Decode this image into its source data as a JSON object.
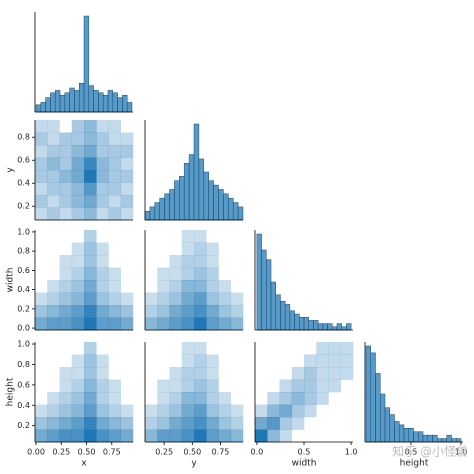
{
  "chart_data": {
    "type": "pairplot",
    "color": "#1f77b4",
    "variables": [
      {
        "label": "x",
        "lim": [
          -0.01,
          0.96
        ],
        "xticks": [
          {
            "value": 0,
            "label": "0.00"
          },
          0.25,
          {
            "value": 0.5,
            "label": "0.50"
          },
          0.75
        ]
      },
      {
        "label": "y",
        "lim": [
          0.08,
          0.95
        ],
        "xticks": [
          0.25,
          {
            "value": 0.5,
            "label": "0.50"
          },
          0.75
        ],
        "yticks": [
          0.2,
          0.4,
          0.6,
          0.8
        ]
      },
      {
        "label": "width",
        "lim": [
          -0.02,
          1.02
        ],
        "xticks": [
          {
            "value": 0,
            "label": "0.0"
          },
          0.5,
          {
            "value": 1,
            "label": "1.0"
          }
        ],
        "yticks": [
          {
            "value": 0,
            "label": "0.0"
          },
          0.2,
          0.4,
          0.6,
          0.8,
          {
            "value": 1,
            "label": "1.0"
          }
        ]
      },
      {
        "label": "height",
        "lim": [
          0.04,
          1.02
        ],
        "xticks": [
          0.5,
          {
            "value": 1,
            "label": "1.0"
          }
        ],
        "yticks": [
          0.2,
          0.4,
          0.6,
          0.8,
          {
            "value": 1,
            "label": "1.0"
          }
        ]
      }
    ],
    "diagonal": [
      {
        "bins": [
          0,
          0.0475,
          0.095,
          0.1425,
          0.19,
          0.2375,
          0.285,
          0.3325,
          0.38,
          0.4275,
          0.475,
          0.5225,
          0.57,
          0.6175,
          0.665,
          0.7125,
          0.76,
          0.8075,
          0.855,
          0.9025,
          0.95
        ],
        "counts": [
          3,
          4,
          6,
          8,
          9,
          7,
          8,
          10,
          9,
          12,
          40,
          11,
          9,
          8,
          7,
          9,
          8,
          6,
          7,
          4
        ]
      },
      {
        "bins": [
          0.08,
          0.1235,
          0.167,
          0.2105,
          0.254,
          0.2975,
          0.341,
          0.3845,
          0.428,
          0.4715,
          0.515,
          0.5585,
          0.602,
          0.6455,
          0.689,
          0.7325,
          0.776,
          0.8195,
          0.863,
          0.9065,
          0.95
        ],
        "counts": [
          2,
          3,
          4,
          5,
          6,
          7,
          9,
          10,
          13,
          15,
          22,
          14,
          11,
          9,
          8,
          7,
          6,
          5,
          4,
          3
        ]
      },
      {
        "bins": [
          0,
          0.05,
          0.1,
          0.15,
          0.2,
          0.25,
          0.3,
          0.35,
          0.4,
          0.45,
          0.5,
          0.55,
          0.6,
          0.65,
          0.7,
          0.75,
          0.8,
          0.85,
          0.9,
          0.95,
          1.0
        ],
        "counts": [
          30,
          25,
          22,
          15,
          11,
          9,
          8,
          6,
          5,
          4,
          4,
          3,
          3,
          2,
          2,
          2,
          1,
          2,
          1,
          2
        ]
      },
      {
        "bins": [
          0.05,
          0.0975,
          0.145,
          0.1925,
          0.24,
          0.2875,
          0.335,
          0.3825,
          0.43,
          0.4775,
          0.525,
          0.5725,
          0.62,
          0.6675,
          0.715,
          0.7625,
          0.81,
          0.8575,
          0.905,
          0.9525,
          1.0
        ],
        "counts": [
          28,
          26,
          20,
          14,
          10,
          8,
          6,
          5,
          4,
          4,
          3,
          3,
          2,
          2,
          2,
          1,
          1,
          2,
          1,
          1
        ]
      }
    ],
    "panels": [
      {
        "counts": [
          [
            1,
            2,
            1,
            2,
            3,
            1,
            2,
            1
          ],
          [
            2,
            1,
            2,
            3,
            4,
            2,
            1,
            2
          ],
          [
            1,
            2,
            2,
            3,
            5,
            2,
            2,
            1
          ],
          [
            2,
            2,
            3,
            4,
            7,
            3,
            2,
            2
          ],
          [
            2,
            3,
            2,
            4,
            6,
            3,
            2,
            1
          ],
          [
            1,
            2,
            2,
            3,
            4,
            2,
            2,
            2
          ],
          [
            2,
            1,
            2,
            2,
            3,
            2,
            1,
            1
          ],
          [
            1,
            1,
            0,
            2,
            3,
            1,
            1,
            0
          ]
        ]
      },
      {
        "counts": [
          [
            5,
            6,
            6,
            7,
            9,
            6,
            6,
            5
          ],
          [
            3,
            4,
            5,
            6,
            8,
            5,
            4,
            3
          ],
          [
            1,
            2,
            3,
            4,
            6,
            3,
            2,
            1
          ],
          [
            0,
            1,
            2,
            3,
            5,
            2,
            1,
            0
          ],
          [
            0,
            0,
            1,
            2,
            4,
            2,
            1,
            0
          ],
          [
            0,
            0,
            1,
            1,
            3,
            1,
            0,
            0
          ],
          [
            0,
            0,
            0,
            1,
            3,
            1,
            0,
            0
          ],
          [
            0,
            0,
            0,
            0,
            2,
            0,
            0,
            0
          ]
        ]
      },
      {
        "counts": [
          [
            4,
            5,
            6,
            7,
            9,
            6,
            5,
            4
          ],
          [
            2,
            3,
            5,
            6,
            7,
            5,
            3,
            2
          ],
          [
            1,
            2,
            3,
            5,
            6,
            3,
            2,
            1
          ],
          [
            0,
            1,
            2,
            4,
            4,
            2,
            1,
            0
          ],
          [
            0,
            1,
            1,
            2,
            3,
            2,
            0,
            0
          ],
          [
            0,
            0,
            1,
            2,
            2,
            1,
            0,
            0
          ],
          [
            0,
            0,
            0,
            1,
            2,
            1,
            0,
            0
          ],
          [
            0,
            0,
            0,
            1,
            1,
            0,
            0,
            0
          ]
        ]
      },
      {
        "counts": [
          [
            5,
            6,
            7,
            7,
            9,
            7,
            6,
            5
          ],
          [
            3,
            4,
            5,
            6,
            8,
            5,
            4,
            3
          ],
          [
            1,
            2,
            3,
            4,
            6,
            3,
            2,
            1
          ],
          [
            0,
            1,
            2,
            3,
            5,
            2,
            1,
            0
          ],
          [
            0,
            0,
            1,
            2,
            4,
            2,
            1,
            0
          ],
          [
            0,
            0,
            1,
            1,
            3,
            1,
            0,
            0
          ],
          [
            0,
            0,
            0,
            1,
            3,
            1,
            0,
            0
          ],
          [
            0,
            0,
            0,
            0,
            2,
            0,
            0,
            0
          ]
        ]
      },
      {
        "counts": [
          [
            4,
            6,
            6,
            7,
            9,
            6,
            5,
            4
          ],
          [
            2,
            3,
            5,
            6,
            7,
            5,
            3,
            2
          ],
          [
            1,
            2,
            3,
            5,
            6,
            3,
            2,
            1
          ],
          [
            0,
            1,
            2,
            4,
            4,
            2,
            1,
            0
          ],
          [
            0,
            1,
            1,
            2,
            3,
            2,
            0,
            0
          ],
          [
            0,
            0,
            1,
            2,
            2,
            1,
            0,
            0
          ],
          [
            0,
            0,
            0,
            1,
            2,
            1,
            0,
            0
          ],
          [
            0,
            0,
            0,
            1,
            1,
            0,
            0,
            0
          ]
        ]
      },
      {
        "counts": [
          [
            7,
            3,
            1,
            0,
            0,
            0,
            0,
            0
          ],
          [
            4,
            5,
            2,
            1,
            0,
            0,
            0,
            0
          ],
          [
            1,
            3,
            4,
            2,
            1,
            0,
            0,
            0
          ],
          [
            0,
            1,
            2,
            3,
            2,
            1,
            0,
            0
          ],
          [
            0,
            0,
            1,
            2,
            2,
            1,
            1,
            0
          ],
          [
            0,
            0,
            0,
            1,
            2,
            1,
            1,
            1
          ],
          [
            0,
            0,
            0,
            0,
            1,
            1,
            1,
            1
          ],
          [
            0,
            0,
            0,
            0,
            0,
            1,
            1,
            1
          ]
        ]
      }
    ],
    "watermark": "知乎 @小怪兽"
  }
}
